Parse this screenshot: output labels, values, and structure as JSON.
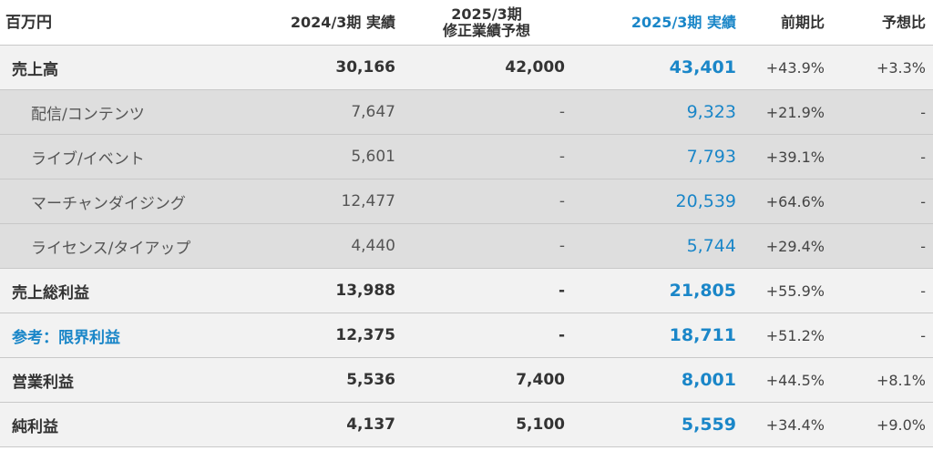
{
  "header": {
    "unit": "百万円",
    "col_prev": "2024/3期 実績",
    "col_forecast_line1": "2025/3期",
    "col_forecast_line2": "修正業績予想",
    "col_actual": "2025/3期 実績",
    "col_yoy": "前期比",
    "col_vs_forecast": "予想比"
  },
  "rows": [
    {
      "label": "売上高",
      "prev": "30,166",
      "forecast": "42,000",
      "actual": "43,401",
      "yoy": "+43.9%",
      "vs_forecast": "+3.3%"
    },
    {
      "label": "配信/コンテンツ",
      "prev": "7,647",
      "forecast": "-",
      "actual": "9,323",
      "yoy": "+21.9%",
      "vs_forecast": "-"
    },
    {
      "label": "ライブ/イベント",
      "prev": "5,601",
      "forecast": "-",
      "actual": "7,793",
      "yoy": "+39.1%",
      "vs_forecast": "-"
    },
    {
      "label": "マーチャンダイジング",
      "prev": "12,477",
      "forecast": "-",
      "actual": "20,539",
      "yoy": "+64.6%",
      "vs_forecast": "-"
    },
    {
      "label": "ライセンス/タイアップ",
      "prev": "4,440",
      "forecast": "-",
      "actual": "5,744",
      "yoy": "+29.4%",
      "vs_forecast": "-"
    },
    {
      "label": "売上総利益",
      "prev": "13,988",
      "forecast": "-",
      "actual": "21,805",
      "yoy": "+55.9%",
      "vs_forecast": "-"
    },
    {
      "label": "参考：限界利益",
      "prev": "12,375",
      "forecast": "-",
      "actual": "18,711",
      "yoy": "+51.2%",
      "vs_forecast": "-"
    },
    {
      "label": "営業利益",
      "prev": "5,536",
      "forecast": "7,400",
      "actual": "8,001",
      "yoy": "+44.5%",
      "vs_forecast": "+8.1%"
    },
    {
      "label": "純利益",
      "prev": "4,137",
      "forecast": "5,100",
      "actual": "5,559",
      "yoy": "+34.4%",
      "vs_forecast": "+9.0%"
    }
  ],
  "colors": {
    "accent_blue": "#1a86c8",
    "main_row_bg": "#f2f2f2",
    "sub_row_bg": "#dedede",
    "divider": "#c8c8c8"
  }
}
